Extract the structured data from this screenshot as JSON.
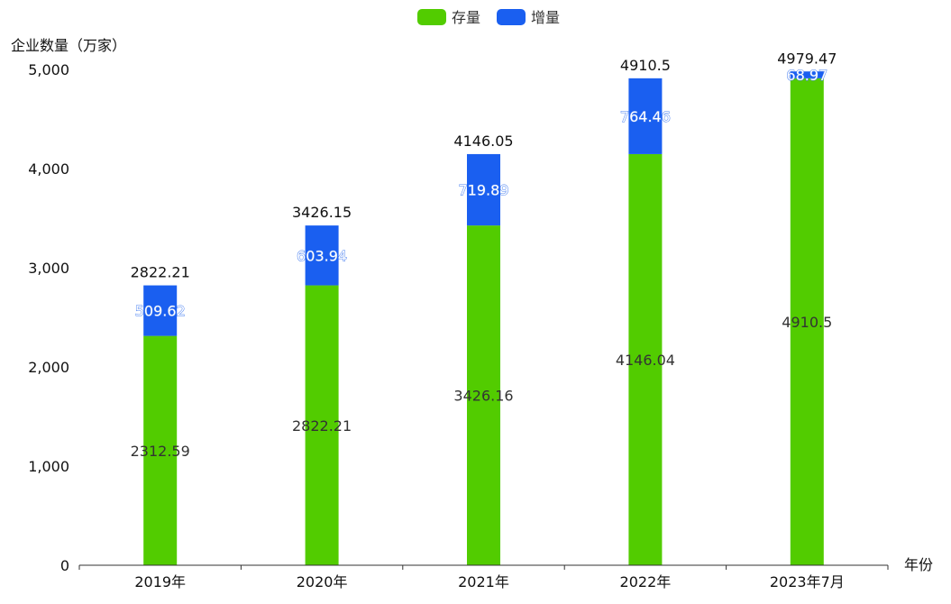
{
  "colors": {
    "stock": "#52cc00",
    "increase": "#1a5ff0",
    "axis": "#333333"
  },
  "chart_data": {
    "type": "bar",
    "stacked": true,
    "categories": [
      "2019年",
      "2020年",
      "2021年",
      "2022年",
      "2023年7月"
    ],
    "series": [
      {
        "name": "存量",
        "values": [
          2312.59,
          2822.21,
          3426.16,
          4146.04,
          4910.5
        ],
        "color": "#52cc00"
      },
      {
        "name": "增量",
        "values": [
          509.62,
          603.94,
          719.89,
          764.46,
          68.97
        ],
        "color": "#1a5ff0"
      }
    ],
    "totals": [
      "2822.21",
      "3426.15",
      "4146.05",
      "4910.5",
      "4979.47"
    ],
    "stock_labels": [
      "2312.59",
      "2822.21",
      "3426.16",
      "4146.04",
      "4910.5"
    ],
    "increase_labels": [
      "509.62",
      "603.94",
      "719.89",
      "764.46",
      "68.97"
    ],
    "ylabel": "企业数量（万家）",
    "xlabel": "年份",
    "ylim": [
      0,
      5000
    ],
    "yticks": [
      0,
      1000,
      2000,
      3000,
      4000,
      5000
    ],
    "ytick_labels": [
      "0",
      "1,000",
      "2,000",
      "3,000",
      "4,000",
      "5,000"
    ],
    "grid": false,
    "legend_position": "top-center"
  }
}
